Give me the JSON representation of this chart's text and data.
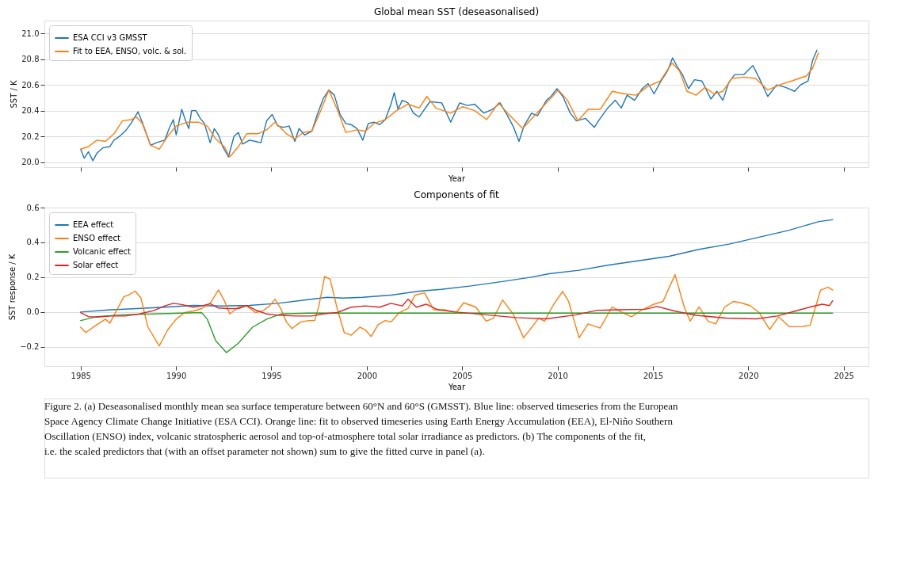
{
  "chart_data": [
    {
      "type": "line",
      "title": "Global mean SST (deseasonalised)",
      "xlabel": "Year",
      "ylabel": "SST / K",
      "xlim": [
        1983.1,
        2026.3
      ],
      "ylim": [
        19.96,
        21.1
      ],
      "xticks": [
        {
          "value": 1985,
          "label": null
        },
        {
          "value": 1990,
          "label": null
        },
        {
          "value": 1995,
          "label": null
        },
        {
          "value": 2000,
          "label": null
        },
        {
          "value": 2005,
          "label": null
        },
        {
          "value": 2010,
          "label": null
        },
        {
          "value": 2015,
          "label": null
        },
        {
          "value": 2020,
          "label": null
        },
        {
          "value": 2025,
          "label": null
        }
      ],
      "yticks": [
        {
          "value": 20,
          "label": "20.0"
        },
        {
          "value": 20.2,
          "label": "20.2"
        },
        {
          "value": 20.4,
          "label": "20.4"
        },
        {
          "value": 20.6,
          "label": "20.6"
        },
        {
          "value": 20.8,
          "label": "20.8"
        },
        {
          "value": 21,
          "label": "21.0"
        }
      ],
      "tick_labels": "y",
      "grid": "y",
      "legend": "top left",
      "line_style": "solid",
      "marker": "none",
      "series": [
        {
          "name": "ESA CCI v3 GMSST",
          "color": "#1f77b4",
          "x": [
            1985.0,
            1985.19,
            1985.41,
            1985.64,
            1985.86,
            1986.16,
            1986.53,
            1986.75,
            1987.04,
            1987.34,
            1987.64,
            1988.01,
            1988.23,
            1988.67,
            1988.97,
            1989.41,
            1989.64,
            1989.86,
            1990.01,
            1990.3,
            1990.53,
            1990.67,
            1990.82,
            1991.04,
            1991.27,
            1991.49,
            1991.79,
            1992.01,
            1992.23,
            1992.45,
            1992.75,
            1993.04,
            1993.27,
            1993.49,
            1993.86,
            1994.16,
            1994.45,
            1994.75,
            1995.04,
            1995.34,
            1995.64,
            1995.93,
            1996.23,
            1996.45,
            1996.75,
            1997.12,
            1997.41,
            1997.71,
            1998.01,
            1998.3,
            1998.6,
            1998.9,
            1999.19,
            1999.49,
            1999.79,
            2000.08,
            2000.38,
            2000.67,
            2000.97,
            2001.27,
            2001.44,
            2001.64,
            2001.86,
            2002.16,
            2002.45,
            2002.75,
            2003.31,
            2003.93,
            2004.4,
            2004.87,
            2005.27,
            2005.66,
            2006.13,
            2006.6,
            2006.99,
            2007.38,
            2007.7,
            2007.98,
            2008.24,
            2008.64,
            2008.95,
            2009.42,
            2009.66,
            2009.97,
            2010.28,
            2010.67,
            2010.99,
            2011.46,
            2011.93,
            2012.24,
            2012.63,
            2013.03,
            2013.34,
            2013.65,
            2014.04,
            2014.44,
            2014.75,
            2015.06,
            2015.38,
            2015.77,
            2016.03,
            2016.24,
            2016.55,
            2016.87,
            2017.18,
            2017.57,
            2018.04,
            2018.35,
            2018.67,
            2018.98,
            2019.29,
            2019.76,
            2020.24,
            2020.55,
            2021.02,
            2021.49,
            2021.96,
            2022.43,
            2022.74,
            2023.13,
            2023.37,
            2023.6
          ],
          "values": [
            20.1,
            20.03,
            20.08,
            20.01,
            20.07,
            20.11,
            20.12,
            20.17,
            20.2,
            20.24,
            20.3,
            20.39,
            20.31,
            20.13,
            20.15,
            20.17,
            20.26,
            20.33,
            20.21,
            20.41,
            20.31,
            20.26,
            20.4,
            20.4,
            20.34,
            20.3,
            20.15,
            20.26,
            20.21,
            20.12,
            20.04,
            20.2,
            20.23,
            20.14,
            20.17,
            20.16,
            20.15,
            20.32,
            20.37,
            20.28,
            20.27,
            20.28,
            20.16,
            20.26,
            20.21,
            20.24,
            20.37,
            20.49,
            20.56,
            20.52,
            20.37,
            20.3,
            20.29,
            20.26,
            20.17,
            20.3,
            20.31,
            20.29,
            20.33,
            20.45,
            20.54,
            20.41,
            20.48,
            20.46,
            20.38,
            20.35,
            20.47,
            20.46,
            20.31,
            20.46,
            20.44,
            20.45,
            20.38,
            20.41,
            20.46,
            20.36,
            20.27,
            20.16,
            20.28,
            20.38,
            20.36,
            20.48,
            20.51,
            20.57,
            20.51,
            20.38,
            20.32,
            20.34,
            20.27,
            20.34,
            20.42,
            20.48,
            20.42,
            20.52,
            20.48,
            20.57,
            20.61,
            20.53,
            20.62,
            20.71,
            20.81,
            20.75,
            20.68,
            20.57,
            20.64,
            20.63,
            20.49,
            20.55,
            20.48,
            20.62,
            20.68,
            20.68,
            20.75,
            20.66,
            20.51,
            20.6,
            20.58,
            20.55,
            20.6,
            20.63,
            20.79,
            20.87
          ]
        },
        {
          "name": "Fit to EEA, ENSO, volc. & sol.",
          "color": "#ff7f0e",
          "x": [
            1985.0,
            1985.41,
            1985.86,
            1986.3,
            1986.75,
            1987.19,
            1987.64,
            1987.93,
            1988.23,
            1988.67,
            1989.12,
            1989.56,
            1990.01,
            1990.6,
            1991.19,
            1991.64,
            1992.08,
            1992.53,
            1992.82,
            1993.27,
            1993.71,
            1994.3,
            1994.75,
            1995.19,
            1995.79,
            1996.23,
            1996.67,
            1997.12,
            1997.56,
            1998.01,
            1998.45,
            1998.9,
            1999.49,
            1999.93,
            2000.38,
            2000.97,
            2001.56,
            2002.16,
            2002.75,
            2003.15,
            2003.62,
            2004.4,
            2005.03,
            2005.66,
            2006.29,
            2006.91,
            2007.38,
            2008.17,
            2008.79,
            2009.42,
            2010.05,
            2010.52,
            2011.07,
            2011.61,
            2012.24,
            2012.87,
            2013.5,
            2014.12,
            2014.75,
            2015.38,
            2016.0,
            2016.39,
            2016.79,
            2017.26,
            2017.73,
            2018.2,
            2018.67,
            2019.14,
            2019.76,
            2020.39,
            2021.02,
            2021.64,
            2022.27,
            2023.05,
            2023.37,
            2023.68
          ],
          "values": [
            20.1,
            20.12,
            20.17,
            20.16,
            20.22,
            20.32,
            20.33,
            20.35,
            20.3,
            20.13,
            20.1,
            20.2,
            20.28,
            20.31,
            20.31,
            20.28,
            20.18,
            20.12,
            20.04,
            20.12,
            20.22,
            20.22,
            20.25,
            20.31,
            20.22,
            20.18,
            20.23,
            20.24,
            20.39,
            20.56,
            20.41,
            20.23,
            20.25,
            20.24,
            20.3,
            20.33,
            20.4,
            20.45,
            20.42,
            20.51,
            20.42,
            20.38,
            20.43,
            20.4,
            20.33,
            20.46,
            20.38,
            20.26,
            20.36,
            20.46,
            20.56,
            20.48,
            20.32,
            20.41,
            20.41,
            20.55,
            20.53,
            20.52,
            20.59,
            20.63,
            20.77,
            20.71,
            20.55,
            20.52,
            20.58,
            20.53,
            20.55,
            20.65,
            20.66,
            20.65,
            20.56,
            20.6,
            20.63,
            20.67,
            20.73,
            20.85
          ]
        }
      ]
    },
    {
      "type": "line",
      "title": "Components of fit",
      "xlabel": "Year",
      "ylabel": "SST response / K",
      "xlim": [
        1983.1,
        2026.3
      ],
      "ylim": [
        -0.31,
        0.6
      ],
      "xticks": [
        1985,
        1990,
        1995,
        2000,
        2005,
        2010,
        2015,
        2020,
        2025
      ],
      "yticks": [
        {
          "value": -0.2,
          "label": "−0.2"
        },
        {
          "value": 0,
          "label": "0.0"
        },
        {
          "value": 0.2,
          "label": "0.2"
        },
        {
          "value": 0.4,
          "label": "0.4"
        },
        {
          "value": 0.6,
          "label": "0.6"
        }
      ],
      "grid": "y",
      "legend": "top left",
      "line_style": "solid",
      "marker": "none",
      "annotations": [
        "Figure 2. (a) Deseasonalised monthly mean sea surface temperature between 60°N and 60°S (GMSST). Blue line: observed timeseries from the European Space Agency Climate Change Initiative (ESA CCI). Orange line: fit to observed timeseries using Earth Energy Accumulation (EEA), El-Niño Southern Oscillation (ENSO) index, volcanic stratospheric aerosol and top-of-atmosphere total solar irradiance as predictors. (b) The components of the fit, i.e. the scaled predictors that (with an offset parameter not shown) sum to give the fitted curve in panel (a)."
      ],
      "series": [
        {
          "name": "EEA effect",
          "color": "#1f77b4",
          "x": [
            1985.0,
            1986.45,
            1987.93,
            1989.41,
            1990.9,
            1992.38,
            1993.86,
            1995.34,
            1996.82,
            1997.93,
            1998.75,
            1999.79,
            2001.27,
            2002.75,
            2003.9,
            2005.47,
            2007.04,
            2008.62,
            2009.56,
            2011.13,
            2012.7,
            2014.28,
            2015.85,
            2017.42,
            2018.99,
            2020.57,
            2022.14,
            2023.71,
            2024.42
          ],
          "values": [
            0.0,
            0.012,
            0.02,
            0.028,
            0.038,
            0.035,
            0.038,
            0.05,
            0.07,
            0.085,
            0.08,
            0.085,
            0.097,
            0.12,
            0.13,
            0.15,
            0.174,
            0.2,
            0.22,
            0.24,
            0.27,
            0.295,
            0.32,
            0.36,
            0.39,
            0.43,
            0.47,
            0.52,
            0.53
          ]
        },
        {
          "name": "ENSO effect",
          "color": "#ff7f0e",
          "x": [
            1985.0,
            1985.27,
            1985.86,
            1986.3,
            1986.53,
            1986.9,
            1987.27,
            1987.49,
            1987.86,
            1988.16,
            1988.53,
            1989.12,
            1989.56,
            1990.01,
            1990.45,
            1990.9,
            1991.34,
            1991.79,
            1992.23,
            1992.53,
            1992.82,
            1993.27,
            1993.71,
            1994.16,
            1994.53,
            1994.9,
            1995.19,
            1995.49,
            1995.79,
            1996.08,
            1996.53,
            1996.97,
            1997.27,
            1997.49,
            1997.79,
            1998.08,
            1998.45,
            1998.82,
            1999.19,
            1999.64,
            1999.93,
            2000.23,
            2000.6,
            2000.97,
            2001.27,
            2001.71,
            2002.16,
            2002.53,
            2003.03,
            2003.51,
            2004.06,
            2004.69,
            2005.08,
            2005.71,
            2006.26,
            2006.65,
            2007.12,
            2007.67,
            2008.22,
            2008.62,
            2009.01,
            2009.32,
            2009.8,
            2010.27,
            2010.58,
            2011.13,
            2011.6,
            2012.23,
            2012.86,
            2013.41,
            2013.88,
            2014.43,
            2015.06,
            2015.53,
            2016.16,
            2016.64,
            2016.95,
            2017.42,
            2017.89,
            2018.29,
            2018.76,
            2019.23,
            2019.62,
            2020.09,
            2020.57,
            2021.12,
            2021.59,
            2022.14,
            2022.77,
            2023.24,
            2023.79,
            2024.18,
            2024.42
          ],
          "values": [
            -0.087,
            -0.118,
            -0.072,
            -0.041,
            -0.064,
            0.012,
            0.089,
            0.097,
            0.12,
            0.081,
            -0.087,
            -0.195,
            -0.103,
            -0.041,
            -0.003,
            0.005,
            0.02,
            0.05,
            0.127,
            0.066,
            -0.011,
            0.028,
            0.035,
            -0.003,
            0.005,
            0.035,
            0.074,
            0.02,
            -0.057,
            -0.095,
            -0.057,
            -0.049,
            -0.049,
            0.035,
            0.204,
            0.189,
            0.02,
            -0.118,
            -0.133,
            -0.087,
            -0.103,
            -0.141,
            -0.072,
            -0.049,
            -0.057,
            -0.003,
            0.02,
            0.097,
            0.11,
            0.013,
            0.013,
            -0.003,
            0.053,
            0.029,
            -0.052,
            -0.035,
            0.069,
            -0.011,
            -0.148,
            -0.092,
            -0.035,
            -0.052,
            0.045,
            0.118,
            0.061,
            -0.148,
            -0.068,
            -0.092,
            0.029,
            -0.003,
            -0.027,
            0.013,
            0.045,
            0.061,
            0.215,
            0.029,
            -0.052,
            0.029,
            -0.052,
            -0.068,
            0.029,
            0.061,
            0.053,
            0.037,
            -0.003,
            -0.1,
            -0.027,
            -0.084,
            -0.084,
            -0.076,
            0.126,
            0.142,
            0.126
          ]
        },
        {
          "name": "Volcanic effect",
          "color": "#2ca02c",
          "x": [
            1985.0,
            1985.86,
            1987.34,
            1988.82,
            1990.3,
            1991.34,
            1991.64,
            1992.08,
            1992.64,
            1993.27,
            1994.01,
            1994.75,
            1995.49,
            1996.97,
            2024.42
          ],
          "values": [
            -0.049,
            -0.026,
            -0.015,
            -0.011,
            -0.006,
            -0.003,
            -0.041,
            -0.164,
            -0.233,
            -0.179,
            -0.087,
            -0.041,
            -0.011,
            -0.006,
            -0.006
          ]
        },
        {
          "name": "Solar effect",
          "color": "#d62728",
          "x": [
            1985.0,
            1985.41,
            1985.86,
            1986.6,
            1987.34,
            1988.08,
            1988.82,
            1989.41,
            1989.86,
            1990.3,
            1990.9,
            1991.34,
            1991.79,
            1992.23,
            1992.67,
            1993.27,
            1993.71,
            1994.16,
            1994.75,
            1995.34,
            1996.23,
            1997.12,
            1997.71,
            1998.45,
            1999.19,
            1999.93,
            2000.67,
            2001.27,
            2001.86,
            2002.16,
            2002.6,
            2003.11,
            2003.74,
            2004.69,
            2006.26,
            2007.83,
            2009.4,
            2010.97,
            2012.08,
            2013.33,
            2014.59,
            2015.22,
            2016.16,
            2017.26,
            2018.84,
            2020.41,
            2021.51,
            2022.45,
            2023.24,
            2023.87,
            2024.26,
            2024.42
          ],
          "values": [
            -0.003,
            -0.026,
            -0.029,
            -0.023,
            -0.023,
            -0.011,
            0.008,
            0.035,
            0.05,
            0.043,
            0.028,
            0.035,
            0.048,
            0.023,
            0.02,
            0.02,
            0.038,
            0.012,
            -0.011,
            -0.018,
            -0.023,
            -0.023,
            -0.011,
            -0.003,
            0.028,
            0.035,
            0.028,
            0.05,
            0.035,
            0.074,
            0.028,
            0.045,
            0.013,
            0.0,
            -0.016,
            -0.032,
            -0.039,
            -0.016,
            0.01,
            0.013,
            0.016,
            0.032,
            0.005,
            -0.019,
            -0.035,
            -0.039,
            -0.023,
            0.005,
            0.029,
            0.045,
            0.037,
            0.065
          ]
        }
      ]
    }
  ]
}
